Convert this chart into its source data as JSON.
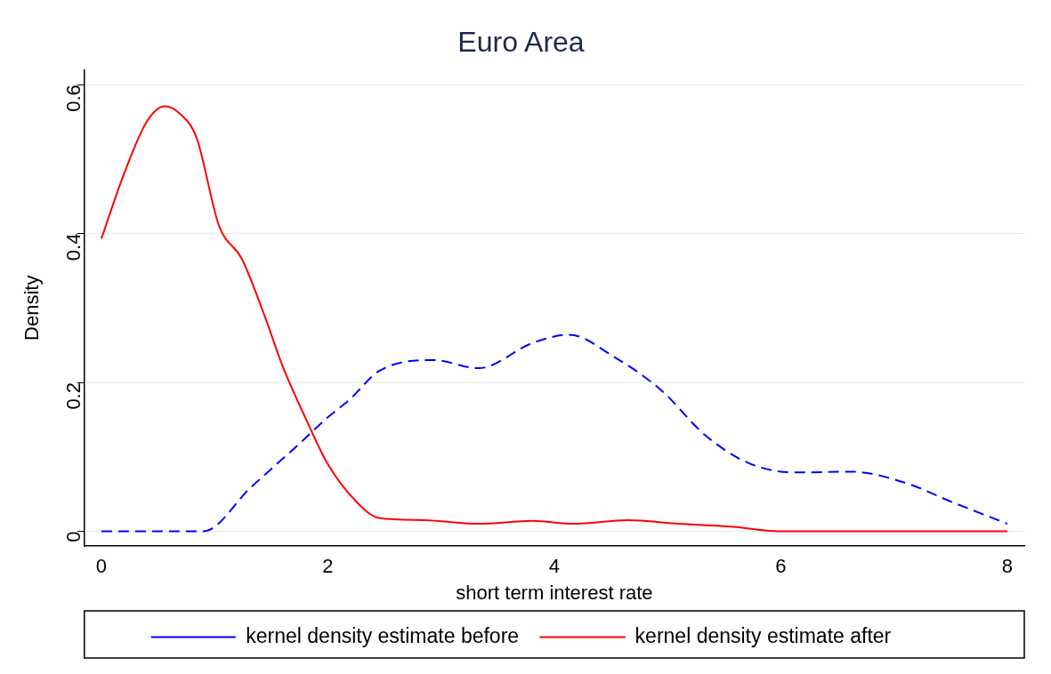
{
  "chart_data": {
    "type": "line",
    "title": "Euro Area",
    "xlabel": "short term interest rate",
    "ylabel": "Density",
    "xlim": [
      -0.15,
      8.15
    ],
    "xticks": [
      0,
      2,
      4,
      6,
      8
    ],
    "ylim": [
      -0.02,
      0.62
    ],
    "yticks": [
      0,
      0.2,
      0.4,
      0.6
    ],
    "grid": "y",
    "legend": "bottom",
    "marker": "none",
    "series": [
      {
        "name": "kernel density estimate before",
        "color": "#0000ff",
        "line_style": "dashed",
        "x": [
          0,
          0.5,
          0.9,
          1.32,
          1.73,
          2.0,
          2.2,
          2.45,
          2.93,
          3.33,
          3.81,
          4.13,
          4.53,
          4.94,
          5.34,
          5.74,
          6.14,
          6.62,
          7.1,
          7.5,
          8
        ],
        "values": [
          0,
          0,
          0,
          0.059,
          0.115,
          0.153,
          0.178,
          0.215,
          0.23,
          0.219,
          0.253,
          0.264,
          0.234,
          0.19,
          0.128,
          0.09,
          0.079,
          0.08,
          0.065,
          0.04,
          0.01
        ]
      },
      {
        "name": "kernel density estimate after",
        "color": "#ff0000",
        "line_style": "solid",
        "x": [
          0,
          0.2,
          0.4,
          0.56,
          0.7,
          0.84,
          1.04,
          1.24,
          1.44,
          1.6,
          1.8,
          2.0,
          2.25,
          2.45,
          2.85,
          3.33,
          3.81,
          4.17,
          4.65,
          5.1,
          5.58,
          5.98,
          7,
          8
        ],
        "values": [
          0.393,
          0.48,
          0.55,
          0.571,
          0.56,
          0.529,
          0.41,
          0.366,
          0.29,
          0.222,
          0.153,
          0.09,
          0.04,
          0.018,
          0.015,
          0.01,
          0.014,
          0.01,
          0.015,
          0.01,
          0.006,
          0,
          0,
          0
        ]
      }
    ]
  }
}
